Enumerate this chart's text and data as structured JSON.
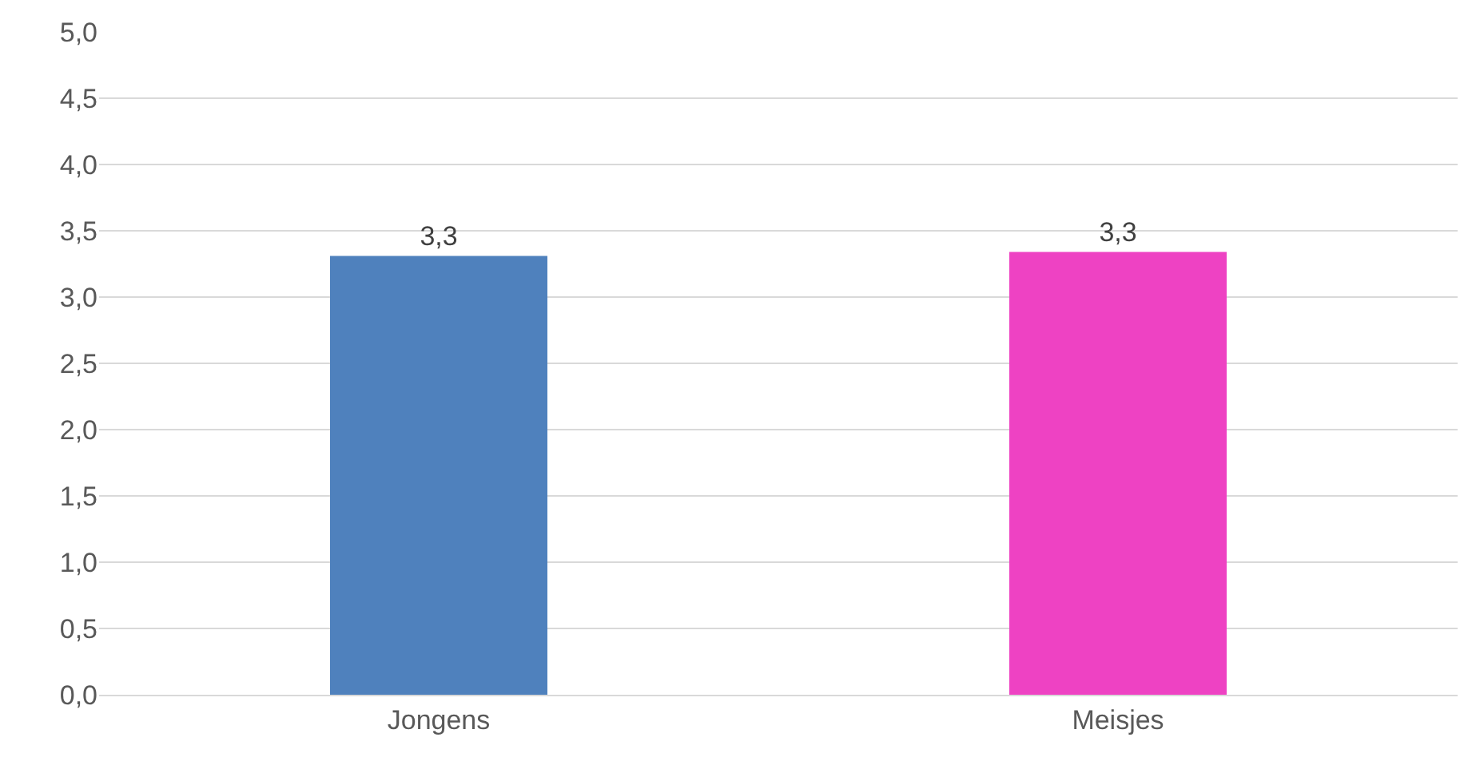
{
  "chart_data": {
    "type": "bar",
    "categories": [
      "Jongens",
      "Meisjes"
    ],
    "values": [
      3.31,
      3.34
    ],
    "colors": [
      "#4f81bd",
      "#ee42c3"
    ],
    "value_labels": [
      "3,3",
      "3,3"
    ],
    "ylim": [
      0,
      5
    ],
    "yticks": [
      {
        "value": 0,
        "label": "0,0"
      },
      {
        "value": 0.5,
        "label": "0,5"
      },
      {
        "value": 1,
        "label": "1,0"
      },
      {
        "value": 1.5,
        "label": "1,5"
      },
      {
        "value": 2,
        "label": "2,0"
      },
      {
        "value": 2.5,
        "label": "2,5"
      },
      {
        "value": 3,
        "label": "3,0"
      },
      {
        "value": 3.5,
        "label": "3,5"
      },
      {
        "value": 4,
        "label": "4,0"
      },
      {
        "value": 4.5,
        "label": "4,5"
      },
      {
        "value": 5,
        "label": "5,0"
      }
    ],
    "grid": "y"
  }
}
